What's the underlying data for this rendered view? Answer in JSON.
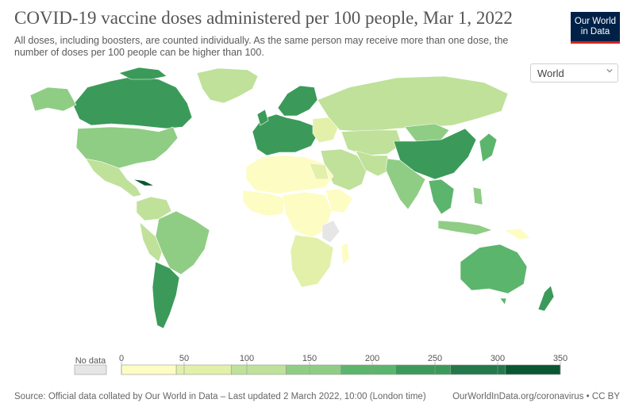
{
  "title": "COVID-19 vaccine doses administered per 100 people, Mar 1, 2022",
  "subtitle": "All doses, including boosters, are counted individually. As the same person may receive more than one dose, the number of doses per 100 people can be higher than 100.",
  "logo": {
    "line1": "Our World",
    "line2": "in Data"
  },
  "region_select": {
    "value": "World"
  },
  "legend": {
    "no_data_label": "No data",
    "ticks": [
      "0",
      "50",
      "100",
      "150",
      "200",
      "250",
      "300",
      "350"
    ],
    "colors": [
      "#fdfcc3",
      "#e2f0a9",
      "#bfe19a",
      "#8fcd85",
      "#5cb56c",
      "#3b9a59",
      "#23794a",
      "#0a5731"
    ],
    "no_data_color": "#e6e6e6"
  },
  "footer": {
    "source": "Source: Official data collated by Our World in Data – Last updated 2 March 2022, 10:00 (London time)",
    "credit": "OurWorldInData.org/coronavirus • CC BY"
  },
  "colors": {
    "ocean": "#ffffff",
    "border": "#ffffff",
    "text": "#555555"
  }
}
